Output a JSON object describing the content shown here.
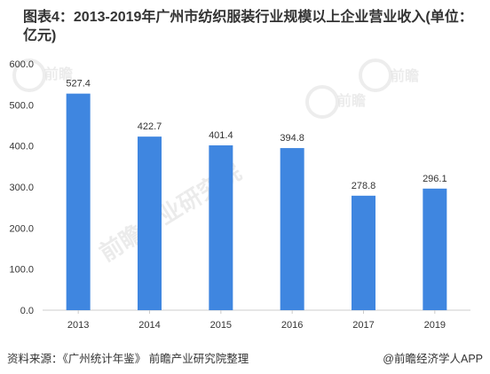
{
  "title": "图表4：2013-2019年广州市纺织服装行业规模以上企业营业收入(单位：亿元)",
  "watermark": {
    "brand": "前瞻",
    "brand_big": "前瞻产业研究院"
  },
  "footer": {
    "source": "资料来源：《广州统计年鉴》 前瞻产业研究院整理",
    "credit": "@前瞻经济学人APP"
  },
  "colors": {
    "bar": "#3f86e0",
    "axis": "#cccccc",
    "text": "#333333"
  },
  "chart_data": {
    "type": "bar",
    "categories": [
      "2013",
      "2014",
      "2015",
      "2016",
      "2017",
      "2019"
    ],
    "values": [
      527.4,
      422.7,
      401.4,
      394.8,
      278.8,
      296.1
    ],
    "data_labels": [
      "527.4",
      "422.7",
      "401.4",
      "394.8",
      "278.8",
      "296.1"
    ],
    "ylim": [
      0,
      600
    ],
    "yticks": [
      "0.0",
      "100.0",
      "200.0",
      "300.0",
      "400.0",
      "500.0",
      "600.0"
    ],
    "ytick_values": [
      0,
      100,
      200,
      300,
      400,
      500,
      600
    ],
    "grid": false,
    "legend": "none"
  }
}
